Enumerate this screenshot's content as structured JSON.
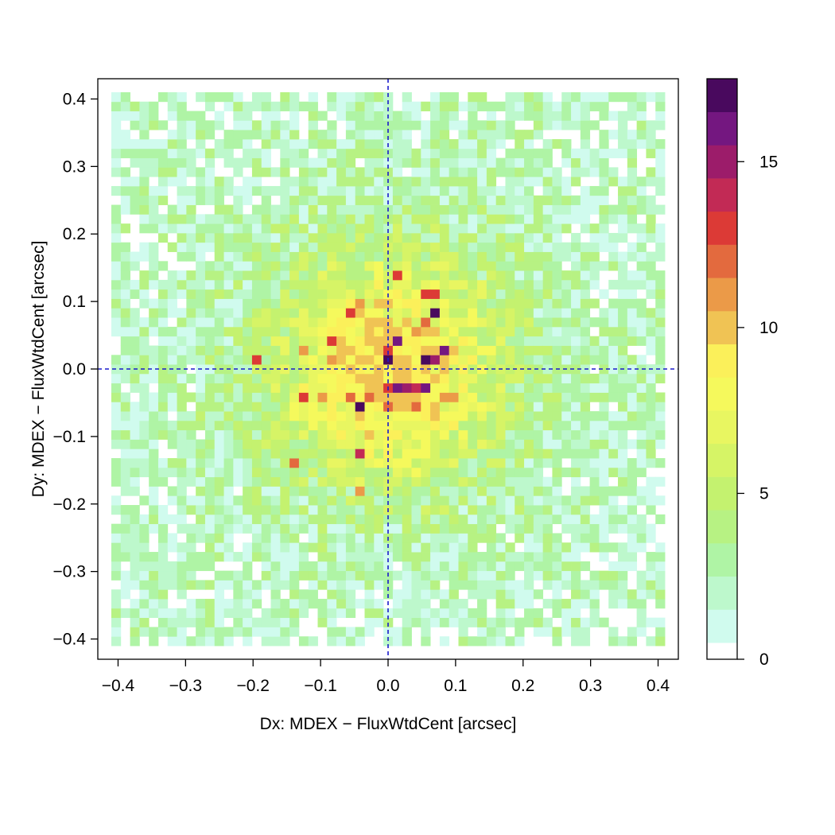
{
  "chart_data": {
    "type": "heatmap",
    "title": "",
    "xlabel": "Dx: MDEX − FluxWtdCent [arcsec]",
    "ylabel": "Dy: MDEX − FluxWtdCent [arcsec]",
    "xlim": [
      -0.43,
      0.43
    ],
    "ylim": [
      -0.43,
      0.43
    ],
    "x_ticks": [
      -0.4,
      -0.3,
      -0.2,
      -0.1,
      0.0,
      0.1,
      0.2,
      0.3,
      0.4
    ],
    "x_tick_labels": [
      "−0.4",
      "−0.3",
      "−0.2",
      "−0.1",
      "0.0",
      "0.1",
      "0.2",
      "0.3",
      "0.4"
    ],
    "y_ticks": [
      -0.4,
      -0.3,
      -0.2,
      -0.1,
      0.0,
      0.1,
      0.2,
      0.3,
      0.4
    ],
    "y_tick_labels": [
      "−0.4",
      "−0.3",
      "−0.2",
      "−0.1",
      "0.0",
      "0.1",
      "0.2",
      "0.3",
      "0.4"
    ],
    "bin_range": [
      -0.41,
      0.41
    ],
    "bin_count": 59,
    "reference_lines": {
      "x": 0.0,
      "y": 0.0,
      "color": "#1a1acc",
      "style": "dashed"
    },
    "grid": false,
    "colorbar": {
      "position": "right",
      "min": 0,
      "max": 17.5,
      "ticks": [
        0,
        5,
        10,
        15
      ],
      "tick_labels": [
        "0",
        "5",
        "10",
        "15"
      ],
      "colors": [
        "#ffffff",
        "#d0fbee",
        "#bdf8cc",
        "#aff4a5",
        "#b7f283",
        "#c4f26f",
        "#d6f466",
        "#e8f661",
        "#f5f95c",
        "#fbf05a",
        "#f0c354",
        "#eb9a48",
        "#e36a3e",
        "#dc3a36",
        "#c22a55",
        "#9c1c6a",
        "#741780",
        "#49095e"
      ]
    },
    "hotspots": [
      {
        "x": 0.015,
        "y": 0.135,
        "count": 13
      },
      {
        "x": 0.058,
        "y": 0.105,
        "count": 13
      },
      {
        "x": 0.075,
        "y": 0.105,
        "count": 13
      },
      {
        "x": 0.07,
        "y": 0.077,
        "count": 17
      },
      {
        "x": -0.055,
        "y": 0.09,
        "count": 13
      },
      {
        "x": -0.045,
        "y": 0.095,
        "count": 11
      },
      {
        "x": -0.035,
        "y": 0.1,
        "count": 11
      },
      {
        "x": 0.05,
        "y": 0.075,
        "count": 12
      },
      {
        "x": 0.045,
        "y": 0.05,
        "count": 11
      },
      {
        "x": 0.015,
        "y": 0.035,
        "count": 16
      },
      {
        "x": 0.0,
        "y": 0.025,
        "count": 13
      },
      {
        "x": 0.085,
        "y": 0.022,
        "count": 16
      },
      {
        "x": 0.055,
        "y": 0.008,
        "count": 17
      },
      {
        "x": 0.07,
        "y": 0.008,
        "count": 15
      },
      {
        "x": 0.0,
        "y": 0.008,
        "count": 17
      },
      {
        "x": -0.195,
        "y": 0.008,
        "count": 13
      },
      {
        "x": -0.08,
        "y": 0.035,
        "count": 13
      },
      {
        "x": -0.12,
        "y": 0.022,
        "count": 11
      },
      {
        "x": -0.09,
        "y": 0.02,
        "count": 11
      },
      {
        "x": 0.015,
        "y": -0.022,
        "count": 16
      },
      {
        "x": 0.03,
        "y": -0.022,
        "count": 15
      },
      {
        "x": 0.045,
        "y": -0.022,
        "count": 14
      },
      {
        "x": 0.055,
        "y": -0.032,
        "count": 16
      },
      {
        "x": 0.005,
        "y": -0.022,
        "count": 13
      },
      {
        "x": -0.13,
        "y": -0.035,
        "count": 13
      },
      {
        "x": -0.095,
        "y": -0.035,
        "count": 13
      },
      {
        "x": -0.1,
        "y": -0.035,
        "count": 11
      },
      {
        "x": -0.03,
        "y": -0.035,
        "count": 12
      },
      {
        "x": -0.04,
        "y": -0.062,
        "count": 17
      },
      {
        "x": -0.055,
        "y": -0.048,
        "count": 12
      },
      {
        "x": 0.0,
        "y": -0.062,
        "count": 12
      },
      {
        "x": 0.035,
        "y": -0.062,
        "count": 12
      },
      {
        "x": 0.1,
        "y": -0.035,
        "count": 11
      },
      {
        "x": -0.04,
        "y": -0.13,
        "count": 14
      },
      {
        "x": -0.135,
        "y": -0.145,
        "count": 12
      },
      {
        "x": -0.04,
        "y": -0.175,
        "count": 11
      },
      {
        "x": 0.085,
        "y": -0.048,
        "count": 11
      }
    ]
  }
}
